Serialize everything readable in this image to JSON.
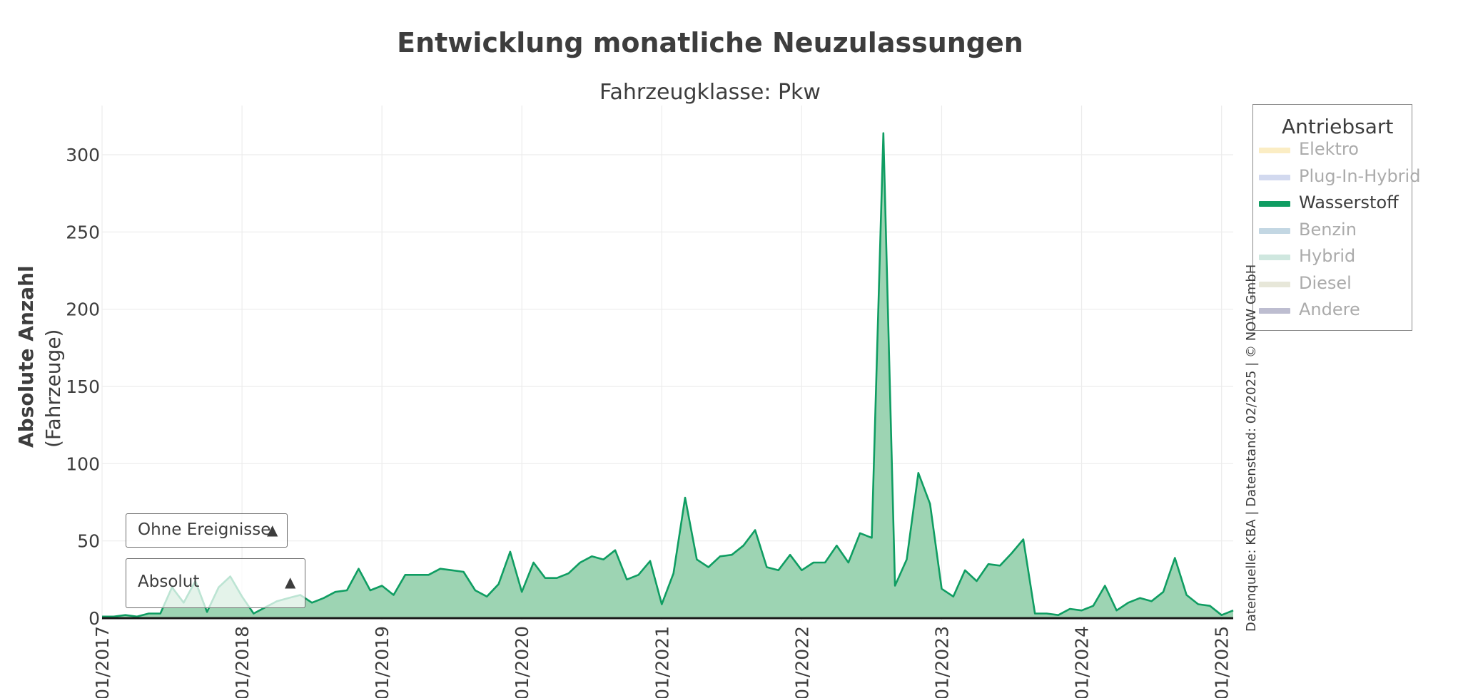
{
  "chart_data": {
    "type": "area",
    "title": "Entwicklung monatliche Neuzulassungen",
    "subtitle": "Fahrzeugklasse: Pkw",
    "ylabel": "Absolute Anzahl",
    "ylabel_unit": "(Fahrzeuge)",
    "ylim": [
      0,
      330
    ],
    "yticks": [
      0,
      50,
      100,
      150,
      200,
      250,
      300
    ],
    "xrange": [
      "2017-01",
      "2025-02"
    ],
    "xticks": [
      "01/2017",
      "01/2018",
      "01/2019",
      "01/2020",
      "01/2021",
      "01/2022",
      "01/2023",
      "01/2024",
      "01/2025"
    ],
    "grid": true,
    "legend_position": "right",
    "x": [
      "2017-01",
      "2017-02",
      "2017-03",
      "2017-04",
      "2017-05",
      "2017-06",
      "2017-07",
      "2017-08",
      "2017-09",
      "2017-10",
      "2017-11",
      "2017-12",
      "2018-01",
      "2018-02",
      "2018-03",
      "2018-04",
      "2018-05",
      "2018-06",
      "2018-07",
      "2018-08",
      "2018-09",
      "2018-10",
      "2018-11",
      "2018-12",
      "2019-01",
      "2019-02",
      "2019-03",
      "2019-04",
      "2019-05",
      "2019-06",
      "2019-07",
      "2019-08",
      "2019-09",
      "2019-10",
      "2019-11",
      "2019-12",
      "2020-01",
      "2020-02",
      "2020-03",
      "2020-04",
      "2020-05",
      "2020-06",
      "2020-07",
      "2020-08",
      "2020-09",
      "2020-10",
      "2020-11",
      "2020-12",
      "2021-01",
      "2021-02",
      "2021-03",
      "2021-04",
      "2021-05",
      "2021-06",
      "2021-07",
      "2021-08",
      "2021-09",
      "2021-10",
      "2021-11",
      "2021-12",
      "2022-01",
      "2022-02",
      "2022-03",
      "2022-04",
      "2022-05",
      "2022-06",
      "2022-07",
      "2022-08",
      "2022-09",
      "2022-10",
      "2022-11",
      "2022-12",
      "2023-01",
      "2023-02",
      "2023-03",
      "2023-04",
      "2023-05",
      "2023-06",
      "2023-07",
      "2023-08",
      "2023-09",
      "2023-10",
      "2023-11",
      "2023-12",
      "2024-01",
      "2024-02",
      "2024-03",
      "2024-04",
      "2024-05",
      "2024-06",
      "2024-07",
      "2024-08",
      "2024-09",
      "2024-10",
      "2024-11",
      "2024-12",
      "2025-01",
      "2025-02"
    ],
    "series": [
      {
        "name": "Wasserstoff",
        "color": "#0f9d62",
        "values": [
          1,
          1,
          2,
          1,
          3,
          3,
          20,
          10,
          24,
          4,
          20,
          27,
          14,
          3,
          7,
          11,
          13,
          15,
          10,
          13,
          17,
          18,
          32,
          18,
          21,
          15,
          28,
          28,
          28,
          32,
          31,
          30,
          18,
          14,
          22,
          43,
          17,
          36,
          26,
          26,
          29,
          36,
          40,
          38,
          44,
          25,
          28,
          37,
          9,
          29,
          78,
          38,
          33,
          40,
          41,
          47,
          57,
          33,
          31,
          41,
          31,
          36,
          36,
          47,
          36,
          55,
          52,
          314,
          21,
          38,
          94,
          74,
          19,
          14,
          31,
          24,
          35,
          34,
          42,
          51,
          3,
          3,
          2,
          6,
          5,
          8,
          21,
          5,
          10,
          13,
          11,
          17,
          39,
          15,
          9,
          8,
          2,
          5
        ]
      }
    ]
  },
  "legend": {
    "title": "Antriebsart",
    "items": [
      {
        "label": "Elektro",
        "color": "#f5d26b",
        "active": false
      },
      {
        "label": "Plug-In-Hybrid",
        "color": "#8ea0d8",
        "active": false
      },
      {
        "label": "Wasserstoff",
        "color": "#0f9d62",
        "active": true
      },
      {
        "label": "Benzin",
        "color": "#6a9cb8",
        "active": false
      },
      {
        "label": "Hybrid",
        "color": "#88c4b0",
        "active": false
      },
      {
        "label": "Diesel",
        "color": "#c2c2a0",
        "active": false
      },
      {
        "label": "Andere",
        "color": "#5a5a8a",
        "active": false
      }
    ]
  },
  "controls": {
    "events_dropdown": {
      "value": "Ohne Ereignisse"
    },
    "mode_dropdown": {
      "value": "Absolut"
    },
    "arrow_glyph": "▲"
  },
  "source_note": "Datenquelle: KBA | Datenstand: 02/2025 | © NOW GmbH",
  "colors": {
    "area_fill": "#9dd4b3",
    "line": "#0f9d62",
    "grid": "#ececec",
    "axis": "#1a1a1a"
  }
}
